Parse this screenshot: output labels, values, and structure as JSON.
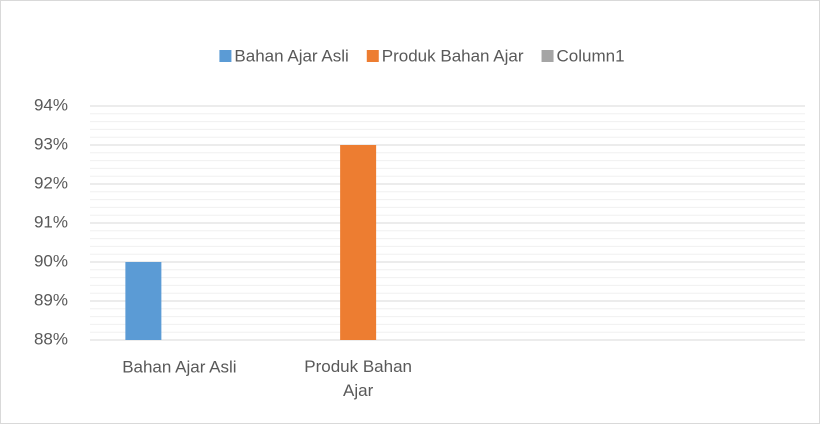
{
  "chart_data": {
    "type": "bar",
    "categories": [
      "Bahan Ajar Asli",
      "Produk Bahan Ajar",
      null,
      null
    ],
    "series": [
      {
        "name": "Bahan Ajar Asli",
        "color": "#5b9bd5",
        "values": [
          90,
          null,
          null,
          null
        ]
      },
      {
        "name": "Produk Bahan Ajar",
        "color": "#ed7d31",
        "values": [
          null,
          93,
          null,
          null
        ]
      },
      {
        "name": "Column1",
        "color": "#a5a5a5",
        "values": [
          null,
          null,
          null,
          null
        ]
      }
    ],
    "ylim": [
      88,
      94
    ],
    "yticks": [
      {
        "value": 88,
        "label": "88%"
      },
      {
        "value": 89,
        "label": "89%"
      },
      {
        "value": 90,
        "label": "90%"
      },
      {
        "value": 91,
        "label": "91%"
      },
      {
        "value": 92,
        "label": "92%"
      },
      {
        "value": 93,
        "label": "93%"
      },
      {
        "value": 94,
        "label": "94%"
      }
    ],
    "grid": true,
    "minor_grid": true,
    "legend": "top"
  }
}
